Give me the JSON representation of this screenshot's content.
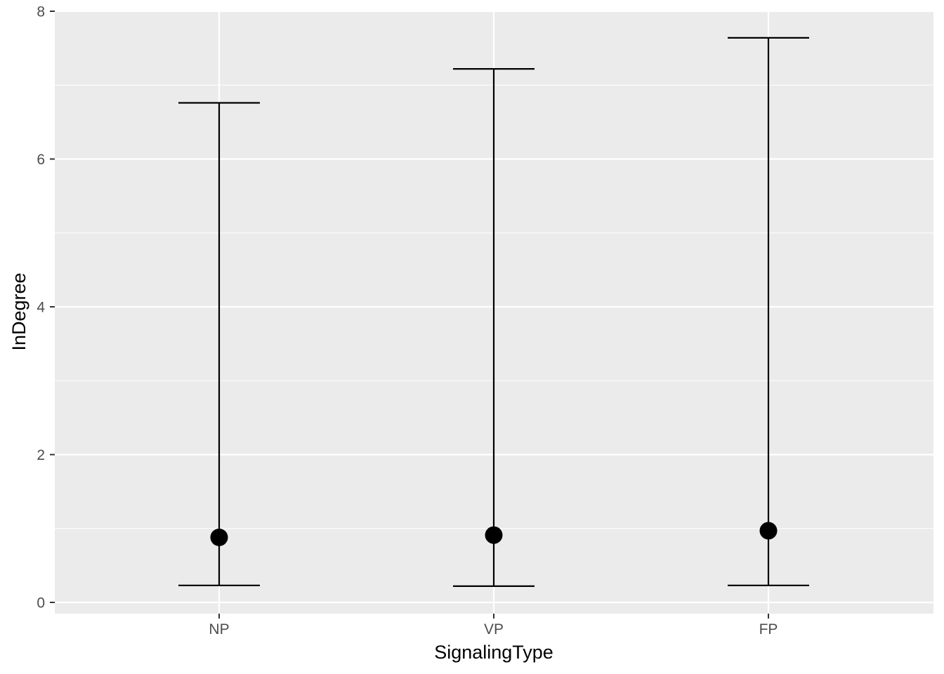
{
  "chart_data": {
    "type": "scatter",
    "subtype": "point-with-errorbars",
    "title": "",
    "xlabel": "SignalingType",
    "ylabel": "InDegree",
    "categories": [
      "NP",
      "VP",
      "FP"
    ],
    "series": [
      {
        "points": [
          {
            "category": "NP",
            "y": 0.88,
            "ymin": 0.23,
            "ymax": 6.76
          },
          {
            "category": "VP",
            "y": 0.91,
            "ymin": 0.22,
            "ymax": 7.22
          },
          {
            "category": "FP",
            "y": 0.97,
            "ymin": 0.23,
            "ymax": 7.64
          }
        ]
      }
    ],
    "ylim": [
      -0.15,
      8.0
    ],
    "yticks": [
      0,
      2,
      4,
      6,
      8
    ],
    "ytick_labels": [
      "0",
      "2",
      "4",
      "6",
      "8"
    ],
    "grid": true,
    "legend": "none",
    "colors": {
      "panel_background": "#EBEBEB",
      "grid": "#FFFFFF",
      "marks": "#000000",
      "tick_text": "#4D4D4D"
    }
  }
}
